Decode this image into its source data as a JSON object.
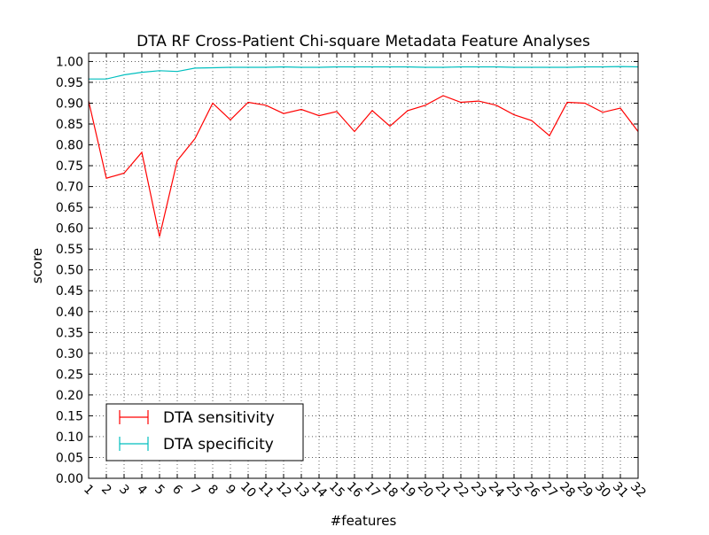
{
  "chart_data": {
    "type": "line",
    "title": "DTA RF Cross-Patient Chi-square Metadata Feature Analyses",
    "xlabel": "#features",
    "ylabel": "score",
    "x": [
      1,
      2,
      3,
      4,
      5,
      6,
      7,
      8,
      9,
      10,
      11,
      12,
      13,
      14,
      15,
      16,
      17,
      18,
      19,
      20,
      21,
      22,
      23,
      24,
      25,
      26,
      27,
      28,
      29,
      30,
      31,
      32
    ],
    "xlim": [
      1,
      32
    ],
    "ylim": [
      0.0,
      1.02
    ],
    "yticks": [
      "0.00",
      "0.05",
      "0.10",
      "0.15",
      "0.20",
      "0.25",
      "0.30",
      "0.35",
      "0.40",
      "0.45",
      "0.50",
      "0.55",
      "0.60",
      "0.65",
      "0.70",
      "0.75",
      "0.80",
      "0.85",
      "0.90",
      "0.95",
      "1.00"
    ],
    "grid": true,
    "legend_position": "lower-left",
    "series": [
      {
        "name": "DTA sensitivity",
        "color": "#ff0000",
        "values": [
          0.905,
          0.72,
          0.732,
          0.782,
          0.58,
          0.762,
          0.815,
          0.9,
          0.86,
          0.902,
          0.895,
          0.875,
          0.885,
          0.87,
          0.88,
          0.832,
          0.882,
          0.845,
          0.882,
          0.895,
          0.918,
          0.902,
          0.905,
          0.895,
          0.872,
          0.858,
          0.822,
          0.902,
          0.9,
          0.878,
          0.888,
          0.832
        ]
      },
      {
        "name": "DTA specificity",
        "color": "#00bfbf",
        "values": [
          0.958,
          0.958,
          0.968,
          0.974,
          0.978,
          0.976,
          0.984,
          0.985,
          0.986,
          0.986,
          0.986,
          0.987,
          0.986,
          0.986,
          0.987,
          0.987,
          0.987,
          0.987,
          0.987,
          0.986,
          0.986,
          0.987,
          0.987,
          0.987,
          0.986,
          0.986,
          0.986,
          0.986,
          0.987,
          0.987,
          0.988,
          0.987
        ]
      }
    ]
  }
}
